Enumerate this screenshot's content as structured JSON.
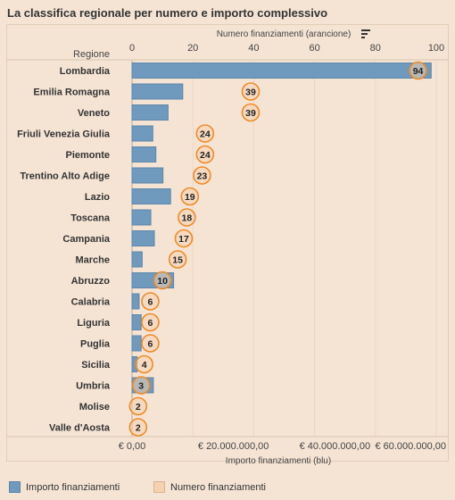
{
  "title": "La classifica regionale per numero e importo complessivo",
  "legend": {
    "items": [
      {
        "label": "Importo finanziamenti",
        "color": "#6f99bd"
      },
      {
        "label": "Numero finanziamenti",
        "color": "#f4d2b0"
      }
    ]
  },
  "chart_data": {
    "type": "bar",
    "row_header": "Regione",
    "top_axis": {
      "label": "Numero finanziamenti (arancione)",
      "range": [
        0,
        100
      ],
      "ticks": [
        "0",
        "20",
        "40",
        "60",
        "80",
        "100"
      ]
    },
    "bottom_axis": {
      "label": "Importo finanziamenti (blu)",
      "range": [
        0,
        60000000
      ],
      "ticks": [
        "€ 0,00",
        "€ 20.000.000,00",
        "€ 40.000.000,00",
        "€ 60.000.000,00"
      ]
    },
    "categories": [
      "Lombardia",
      "Emilia Romagna",
      "Veneto",
      "Friuli Venezia Giulia",
      "Piemonte",
      "Trentino Alto Adige",
      "Lazio",
      "Toscana",
      "Campania",
      "Marche",
      "Abruzzo",
      "Calabria",
      "Liguria",
      "Puglia",
      "Sicilia",
      "Umbria",
      "Molise",
      "Valle d'Aosta"
    ],
    "series": [
      {
        "name": "Importo finanziamenti",
        "color": "#6f99bd",
        "values": [
          59000000,
          10000000,
          7100000,
          4100000,
          4700000,
          6100000,
          7600000,
          3700000,
          4400000,
          2000000,
          8200000,
          1400000,
          1800000,
          1800000,
          1000000,
          4200000,
          0,
          0
        ]
      },
      {
        "name": "Numero finanziamenti",
        "color": "#f08a24",
        "values": [
          94,
          39,
          39,
          24,
          24,
          23,
          19,
          18,
          17,
          15,
          10,
          6,
          6,
          6,
          4,
          3,
          2,
          2
        ]
      }
    ],
    "grid": true
  }
}
